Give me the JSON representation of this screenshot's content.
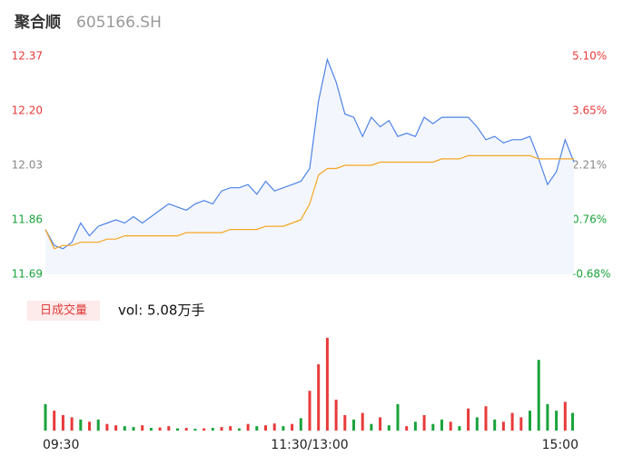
{
  "header": {
    "name": "聚合顺",
    "code": "605166.SH"
  },
  "chart_data": [
    {
      "type": "line",
      "x": [
        0,
        4,
        8,
        12,
        16,
        20,
        24,
        28,
        32,
        36,
        40,
        44,
        48,
        52,
        56,
        60,
        64,
        68,
        72,
        76,
        80,
        84,
        88,
        92,
        96,
        100,
        104,
        108,
        112,
        116,
        120,
        124,
        128,
        132,
        136,
        140,
        144,
        148,
        152,
        156,
        160,
        164,
        168,
        172,
        176,
        180,
        184,
        188,
        192,
        196,
        200,
        204,
        208,
        212,
        216,
        220,
        224,
        228,
        232,
        236,
        240
      ],
      "xlim": [
        0,
        240
      ],
      "ylim": [
        11.69,
        12.37
      ],
      "yticks": [
        12.37,
        {
          "value": 12.2,
          "label": "12.20"
        },
        12.03,
        11.86,
        11.69
      ],
      "y2lim": [
        -0.68,
        5.1
      ],
      "y2ticks": [
        {
          "value": 5.1,
          "label": "5.10%"
        },
        {
          "value": 3.65,
          "label": "3.65%"
        },
        {
          "value": 2.21,
          "label": "2.21%"
        },
        {
          "value": 0.76,
          "label": "0.76%"
        },
        {
          "value": -0.68,
          "label": "-0.68%"
        }
      ],
      "series": [
        {
          "color": "#4f84e6",
          "values": [
            11.83,
            11.78,
            11.77,
            11.79,
            11.85,
            11.81,
            11.84,
            11.85,
            11.86,
            11.85,
            11.87,
            11.85,
            11.87,
            11.89,
            11.91,
            11.9,
            11.89,
            11.91,
            11.92,
            11.91,
            11.95,
            11.96,
            11.96,
            11.97,
            11.94,
            11.98,
            11.95,
            11.96,
            11.97,
            11.98,
            12.02,
            12.23,
            12.36,
            12.29,
            12.19,
            12.18,
            12.12,
            12.18,
            12.15,
            12.17,
            12.12,
            12.13,
            12.12,
            12.18,
            12.16,
            12.18,
            12.18,
            12.18,
            12.18,
            12.15,
            12.11,
            12.12,
            12.1,
            12.11,
            12.11,
            12.12,
            12.05,
            11.97,
            12.01,
            12.11,
            12.04
          ]
        },
        {
          "color": "#f5a623",
          "values": [
            11.83,
            11.77,
            11.78,
            11.78,
            11.79,
            11.79,
            11.79,
            11.8,
            11.8,
            11.81,
            11.81,
            11.81,
            11.81,
            11.81,
            11.81,
            11.81,
            11.82,
            11.82,
            11.82,
            11.82,
            11.82,
            11.83,
            11.83,
            11.83,
            11.83,
            11.84,
            11.84,
            11.84,
            11.85,
            11.86,
            11.91,
            12.0,
            12.02,
            12.02,
            12.03,
            12.03,
            12.03,
            12.03,
            12.04,
            12.04,
            12.04,
            12.04,
            12.04,
            12.04,
            12.04,
            12.05,
            12.05,
            12.05,
            12.06,
            12.06,
            12.06,
            12.06,
            12.06,
            12.06,
            12.06,
            12.06,
            12.05,
            12.05,
            12.05,
            12.05,
            12.05
          ]
        }
      ]
    },
    {
      "type": "bar",
      "title": "日成交量",
      "subtitle": "vol: 5.08万手",
      "x": [
        0,
        4,
        8,
        12,
        16,
        20,
        24,
        28,
        32,
        36,
        40,
        44,
        48,
        52,
        56,
        60,
        64,
        68,
        72,
        76,
        80,
        84,
        88,
        92,
        96,
        100,
        104,
        108,
        112,
        116,
        120,
        124,
        128,
        132,
        136,
        140,
        144,
        148,
        152,
        156,
        160,
        164,
        168,
        172,
        176,
        180,
        184,
        188,
        192,
        196,
        200,
        204,
        208,
        212,
        216,
        220,
        224,
        228,
        232,
        236,
        240
      ],
      "xlim": [
        0,
        240
      ],
      "xticks": [
        {
          "value": 0,
          "label": "09:30"
        },
        {
          "value": 120,
          "label": "11:30/13:00"
        },
        {
          "value": 240,
          "label": "15:00"
        }
      ],
      "ylim": [
        0,
        2200
      ],
      "values": [
        600,
        450,
        350,
        300,
        250,
        200,
        250,
        150,
        120,
        100,
        80,
        120,
        60,
        70,
        100,
        50,
        60,
        40,
        50,
        60,
        80,
        100,
        50,
        150,
        100,
        120,
        160,
        100,
        150,
        280,
        900,
        1500,
        2100,
        700,
        350,
        250,
        400,
        150,
        300,
        120,
        600,
        100,
        200,
        350,
        150,
        250,
        200,
        100,
        500,
        300,
        550,
        250,
        200,
        400,
        300,
        450,
        1600,
        600,
        450,
        650,
        400
      ],
      "colors": [
        "#1aa33b",
        "#e83a3a",
        "#e83a3a",
        "#e83a3a",
        "#1aa33b",
        "#e83a3a",
        "#1aa33b",
        "#e83a3a",
        "#e83a3a",
        "#1aa33b",
        "#1aa33b",
        "#e83a3a",
        "#1aa33b",
        "#e83a3a",
        "#e83a3a",
        "#1aa33b",
        "#e83a3a",
        "#1aa33b",
        "#e83a3a",
        "#1aa33b",
        "#e83a3a",
        "#e83a3a",
        "#1aa33b",
        "#e83a3a",
        "#1aa33b",
        "#e83a3a",
        "#e83a3a",
        "#1aa33b",
        "#e83a3a",
        "#1aa33b",
        "#e83a3a",
        "#e83a3a",
        "#e83a3a",
        "#e83a3a",
        "#e83a3a",
        "#1aa33b",
        "#e83a3a",
        "#1aa33b",
        "#e83a3a",
        "#1aa33b",
        "#1aa33b",
        "#e83a3a",
        "#1aa33b",
        "#e83a3a",
        "#1aa33b",
        "#1aa33b",
        "#e83a3a",
        "#1aa33b",
        "#e83a3a",
        "#1aa33b",
        "#e83a3a",
        "#1aa33b",
        "#e83a3a",
        "#e83a3a",
        "#e83a3a",
        "#1aa33b",
        "#1aa33b",
        "#1aa33b",
        "#1aa33b",
        "#e83a3a",
        "#1aa33b"
      ]
    }
  ]
}
